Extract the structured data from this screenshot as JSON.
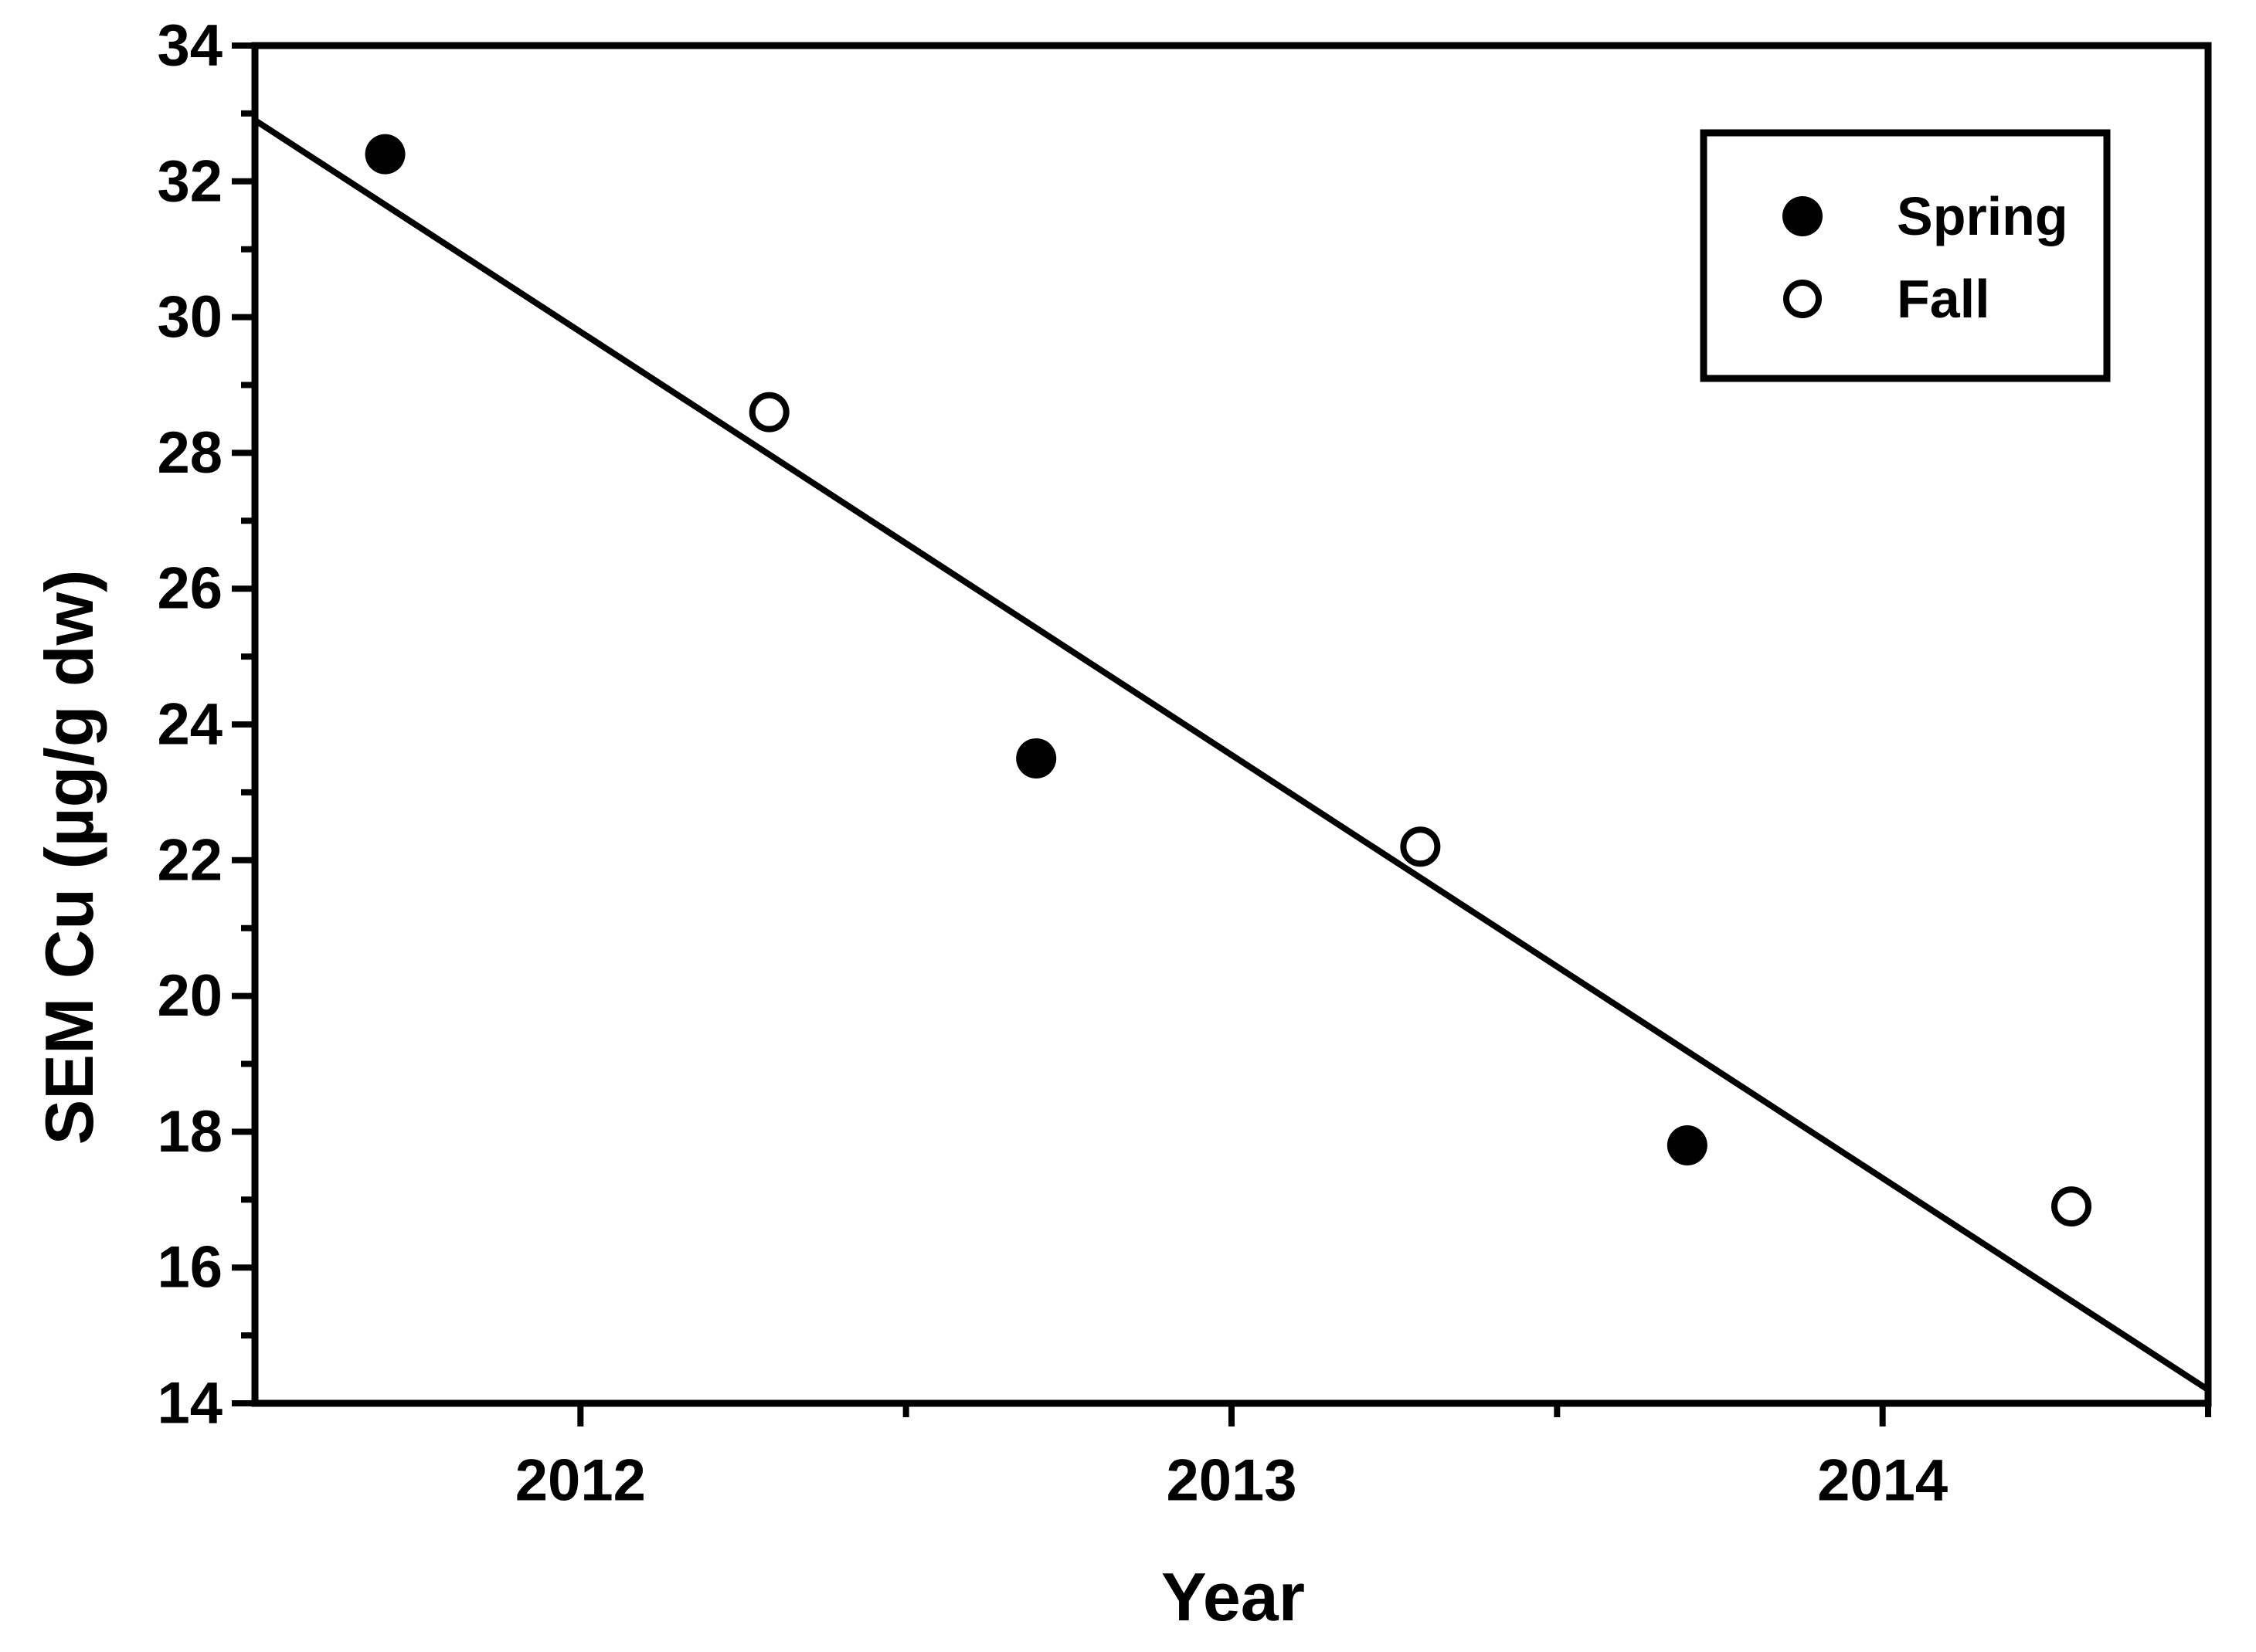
{
  "chart_data": {
    "type": "scatter",
    "title": "",
    "xlabel": "Year",
    "ylabel": "SEM Cu (µg/g dw)",
    "xlim": [
      2011.5,
      2014.5
    ],
    "ylim": [
      14,
      34
    ],
    "x_major_ticks": [
      {
        "value": 2012,
        "label": "2012"
      },
      {
        "value": 2013,
        "label": "2013"
      },
      {
        "value": 2014,
        "label": "2014"
      }
    ],
    "x_minor_ticks": [
      2012.5,
      2013.5,
      2014.5
    ],
    "y_major_ticks": [
      {
        "value": 34,
        "label": "34"
      },
      {
        "value": 32,
        "label": "32"
      },
      {
        "value": 30,
        "label": "30"
      },
      {
        "value": 28,
        "label": "28"
      },
      {
        "value": 26,
        "label": "26"
      },
      {
        "value": 24,
        "label": "24"
      },
      {
        "value": 22,
        "label": "22"
      },
      {
        "value": 20,
        "label": "20"
      },
      {
        "value": 18,
        "label": "18"
      },
      {
        "value": 16,
        "label": "16"
      },
      {
        "value": 14,
        "label": "14"
      }
    ],
    "y_minor_ticks": [
      33,
      31,
      29,
      27,
      25,
      23,
      21,
      19,
      17,
      15
    ],
    "grid": false,
    "legend_position": "top-right",
    "series": [
      {
        "name": "Spring",
        "marker": "filled-circle",
        "marker_fill": "#000000",
        "points": [
          {
            "x": 2011.7,
            "y": 32.4
          },
          {
            "x": 2012.7,
            "y": 23.5
          },
          {
            "x": 2013.7,
            "y": 17.8
          }
        ]
      },
      {
        "name": "Fall",
        "marker": "open-circle",
        "marker_fill": "#ffffff",
        "points": [
          {
            "x": 2012.29,
            "y": 28.6
          },
          {
            "x": 2013.29,
            "y": 22.2
          },
          {
            "x": 2014.29,
            "y": 16.9
          }
        ]
      }
    ],
    "trendline": {
      "x1": 2011.5,
      "y1": 32.9,
      "x2": 2014.5,
      "y2": 14.2
    }
  },
  "legend": {
    "items": [
      {
        "label": "Spring",
        "marker": "filled-circle"
      },
      {
        "label": "Fall",
        "marker": "open-circle"
      }
    ]
  },
  "colors": {
    "foreground": "#000000",
    "background": "#ffffff"
  }
}
